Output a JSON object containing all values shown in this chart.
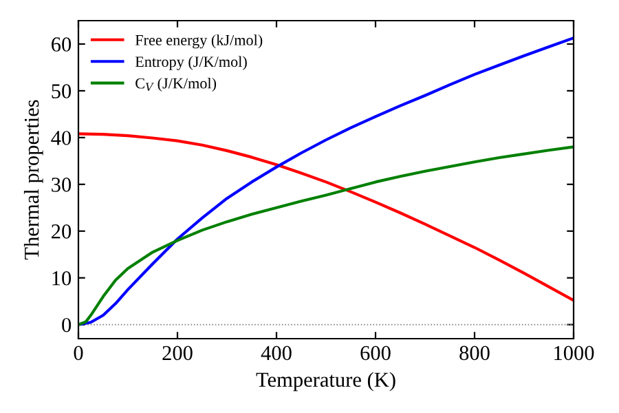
{
  "chart_data": {
    "type": "line",
    "xlabel": "Temperature (K)",
    "ylabel": "Thermal properties",
    "xlim": [
      0,
      1000
    ],
    "xticks": [
      0,
      200,
      400,
      600,
      800,
      1000
    ],
    "ylim": [
      -3,
      65
    ],
    "yticks": [
      0,
      10,
      20,
      30,
      40,
      50,
      60
    ],
    "legend": "top left",
    "grid": false,
    "line_style": "solid",
    "marker": "none",
    "ref_lines": [
      {
        "axis": "y",
        "value": 0,
        "color": "#808080",
        "line_style": "dotted"
      }
    ],
    "series": [
      {
        "name": "Free energy (kJ/mol)",
        "color": "#ff0000",
        "x": [
          0,
          50,
          100,
          150,
          200,
          250,
          300,
          350,
          400,
          450,
          500,
          550,
          600,
          650,
          700,
          750,
          800,
          850,
          900,
          950,
          1000
        ],
        "values": [
          40.8,
          40.7,
          40.4,
          39.9,
          39.3,
          38.4,
          37.2,
          35.8,
          34.2,
          32.4,
          30.5,
          28.4,
          26.2,
          23.9,
          21.5,
          19.0,
          16.5,
          13.8,
          11.0,
          8.1,
          5.2
        ]
      },
      {
        "name": "Entropy (J/K/mol)",
        "color": "#0000ff",
        "x": [
          0,
          25,
          50,
          75,
          100,
          150,
          200,
          250,
          300,
          350,
          400,
          450,
          500,
          550,
          600,
          650,
          700,
          750,
          800,
          850,
          900,
          950,
          1000
        ],
        "values": [
          0,
          0.5,
          2,
          4.5,
          7.5,
          13,
          18.3,
          22.8,
          27,
          30.5,
          33.7,
          36.7,
          39.5,
          42.1,
          44.5,
          46.8,
          49,
          51.3,
          53.5,
          55.5,
          57.5,
          59.4,
          61.3
        ]
      },
      {
        "name": "C$_{V}$ (J/K/mol)",
        "color": "#008000",
        "x": [
          0,
          15,
          25,
          50,
          75,
          100,
          150,
          200,
          250,
          300,
          350,
          400,
          450,
          500,
          550,
          600,
          650,
          700,
          750,
          800,
          850,
          900,
          950,
          1000
        ],
        "values": [
          0,
          0.6,
          2,
          6,
          9.5,
          12,
          15.5,
          18,
          20.2,
          22,
          23.6,
          25,
          26.4,
          27.7,
          29.1,
          30.5,
          31.7,
          32.8,
          33.8,
          34.8,
          35.7,
          36.5,
          37.3,
          38
        ]
      }
    ]
  }
}
